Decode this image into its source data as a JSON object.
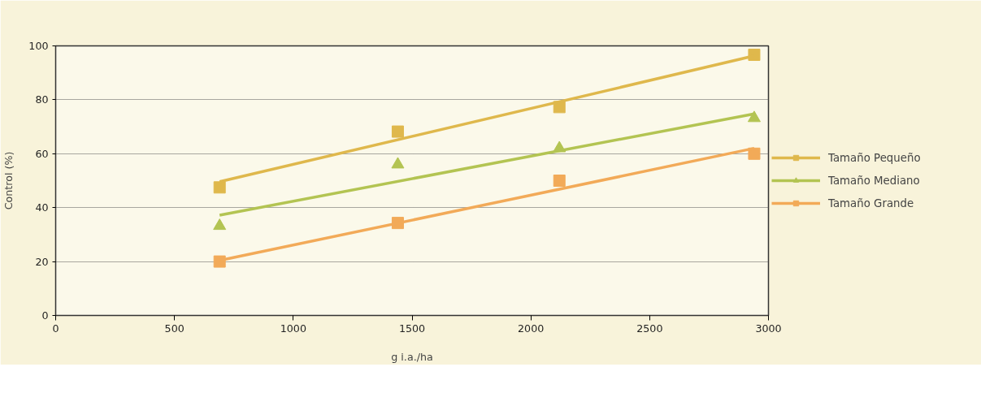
{
  "chart_data": {
    "type": "scatter",
    "xlabel": "g i.a./ha",
    "ylabel": "Control (%)",
    "xlim": [
      0,
      3000
    ],
    "ylim": [
      0,
      100
    ],
    "xticks": [
      0,
      500,
      1000,
      1500,
      2000,
      2500,
      3000
    ],
    "yticks": [
      0,
      20,
      40,
      60,
      80,
      100
    ],
    "grid": "y",
    "legend": "right",
    "series": [
      {
        "name": "Tamaño Pequeño",
        "marker": "square",
        "color": "#dfb84c",
        "x": [
          690,
          1440,
          2120,
          2940
        ],
        "values": [
          47.5,
          68.2,
          77.3,
          96.7
        ]
      },
      {
        "name": "Tamaño Mediano",
        "marker": "triangle",
        "color": "#b3c452",
        "x": [
          690,
          1440,
          2120,
          2940
        ],
        "values": [
          33.2,
          56,
          62,
          73.2
        ]
      },
      {
        "name": "Tamaño Grande",
        "marker": "square",
        "color": "#f2aa58",
        "x": [
          690,
          1440,
          2120,
          2940
        ],
        "values": [
          20,
          34.3,
          50,
          60
        ]
      },
      {
        "type": "line",
        "color": "#dfb84c",
        "x": [
          690,
          2940
        ],
        "values": [
          49.6,
          96.3
        ]
      },
      {
        "type": "line",
        "color": "#b3c452",
        "x": [
          690,
          2940
        ],
        "values": [
          37.2,
          74.8
        ]
      },
      {
        "type": "line",
        "color": "#f2aa58",
        "x": [
          690,
          2940
        ],
        "values": [
          20.4,
          62
        ]
      }
    ]
  }
}
